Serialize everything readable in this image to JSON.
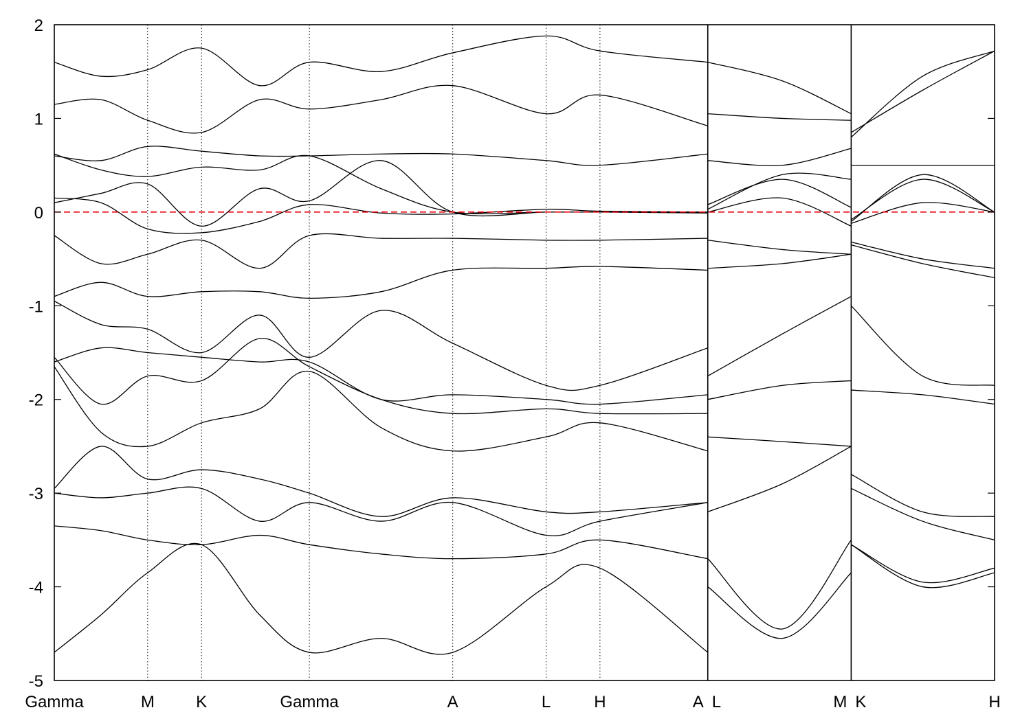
{
  "chart_data": {
    "type": "line",
    "title": "",
    "xlabel": "",
    "ylabel": "",
    "ylim": [
      -5,
      2
    ],
    "yticks": [
      "2",
      "1",
      "0",
      "-1",
      "-2",
      "-3",
      "-4",
      "-5"
    ],
    "x_points": [
      {
        "label": "Gamma",
        "x": 0
      },
      {
        "label": "M",
        "x": 1
      },
      {
        "label": "K",
        "x": 1.577
      },
      {
        "label": "Gamma",
        "x": 2.732
      },
      {
        "label": "A",
        "x": 4.268
      },
      {
        "label": "L",
        "x": 5.268
      },
      {
        "label": "H",
        "x": 5.845
      },
      {
        "label": "A",
        "x": 7.0
      },
      {
        "label": "L",
        "x": 7.0
      },
      {
        "label": "M",
        "x": 8.536
      },
      {
        "label": "K",
        "x": 8.536
      },
      {
        "label": "H",
        "x": 10.072
      }
    ],
    "xlim": [
      0,
      10.072
    ],
    "path_breaks": [
      7.0,
      8.536
    ],
    "fermi_level": {
      "y": 0,
      "color": "#e8000b",
      "style": "dashed"
    },
    "grid": "vertical dotted at high-symmetry points",
    "series": [
      {
        "x": [
          0,
          0.5,
          1,
          1.577,
          2.2,
          2.732,
          3.5,
          4.268,
          5.268,
          5.845,
          7.0,
          7.0,
          7.8,
          8.536,
          8.536,
          9.3,
          10.072
        ],
        "y": [
          0.15,
          0.1,
          -0.18,
          -0.22,
          -0.1,
          0.08,
          -0.01,
          -0.02,
          0.03,
          0.01,
          0.0,
          0.0,
          0.15,
          -0.15,
          -0.12,
          0.1,
          0.0
        ]
      },
      {
        "x": [
          0,
          0.5,
          1,
          1.577,
          2.2,
          2.732,
          3.5,
          4.268,
          5.268,
          5.845,
          7.0,
          7.0,
          7.8,
          8.536,
          8.536,
          9.3,
          10.072
        ],
        "y": [
          0.1,
          0.2,
          0.3,
          -0.15,
          0.25,
          0.12,
          0.55,
          0.0,
          0.0,
          0.0,
          -0.01,
          0.03,
          0.4,
          0.35,
          -0.1,
          0.4,
          0.0
        ]
      },
      {
        "x": [
          0,
          0.5,
          1,
          1.577,
          2.2,
          2.732,
          3.5,
          4.268,
          5.268,
          5.845,
          7.0,
          7.0,
          7.8,
          8.536,
          8.536,
          9.3,
          10.072
        ],
        "y": [
          0.6,
          0.55,
          0.7,
          0.65,
          0.6,
          0.6,
          0.62,
          0.62,
          0.55,
          0.5,
          0.62,
          0.55,
          0.5,
          0.68,
          0.5,
          0.5,
          0.5
        ]
      },
      {
        "x": [
          0,
          0.5,
          1,
          1.577,
          2.2,
          2.732,
          3.5,
          4.268,
          5.268,
          5.845,
          7.0,
          7.0,
          7.8,
          8.536,
          8.536,
          9.3,
          10.072
        ],
        "y": [
          0.62,
          0.45,
          0.38,
          0.48,
          0.45,
          0.6,
          0.25,
          0.0,
          0.0,
          0.0,
          0.0,
          0.08,
          0.35,
          0.05,
          -0.08,
          0.35,
          0.0
        ]
      },
      {
        "x": [
          0,
          0.5,
          1,
          1.577,
          2.2,
          2.732,
          3.5,
          4.268,
          5.268,
          5.845,
          7.0,
          7.0,
          7.8,
          8.536,
          8.536,
          9.3,
          10.072
        ],
        "y": [
          1.15,
          1.2,
          0.98,
          0.85,
          1.2,
          1.1,
          1.2,
          1.35,
          1.05,
          1.25,
          0.92,
          1.05,
          1.0,
          0.98,
          0.85,
          1.3,
          1.72
        ]
      },
      {
        "x": [
          0,
          0.5,
          1,
          1.577,
          2.2,
          2.732,
          3.5,
          4.268,
          5.268,
          5.845,
          7.0,
          7.0,
          7.8,
          8.536,
          8.536,
          9.3,
          10.072
        ],
        "y": [
          1.6,
          1.45,
          1.52,
          1.75,
          1.35,
          1.6,
          1.5,
          1.7,
          1.88,
          1.72,
          1.6,
          1.6,
          1.4,
          1.05,
          0.8,
          1.45,
          1.72
        ]
      },
      {
        "x": [
          0,
          0.5,
          1,
          1.577,
          2.2,
          2.732,
          3.5,
          4.268,
          5.268,
          5.845,
          7.0,
          7.0,
          7.8,
          8.536,
          8.536,
          9.3,
          10.072
        ],
        "y": [
          -0.25,
          -0.55,
          -0.45,
          -0.3,
          -0.6,
          -0.25,
          -0.28,
          -0.28,
          -0.3,
          -0.3,
          -0.28,
          -0.3,
          -0.4,
          -0.45,
          -0.32,
          -0.5,
          -0.6
        ]
      },
      {
        "x": [
          0,
          0.5,
          1,
          1.577,
          2.2,
          2.732,
          3.5,
          4.268,
          5.268,
          5.845,
          7.0,
          7.0,
          7.8,
          8.536,
          8.536,
          9.3,
          10.072
        ],
        "y": [
          -0.9,
          -0.75,
          -0.9,
          -0.85,
          -0.85,
          -0.92,
          -0.85,
          -0.62,
          -0.6,
          -0.58,
          -0.62,
          -0.6,
          -0.55,
          -0.45,
          -0.35,
          -0.55,
          -0.7
        ]
      },
      {
        "x": [
          0,
          0.5,
          1,
          1.577,
          2.2,
          2.732,
          3.5,
          4.268,
          5.268,
          5.845,
          7.0,
          7.0,
          7.8,
          8.536,
          8.536,
          9.3,
          10.072
        ],
        "y": [
          -0.95,
          -1.2,
          -1.25,
          -1.5,
          -1.1,
          -1.55,
          -1.05,
          -1.4,
          -1.85,
          -1.85,
          -1.45,
          -1.75,
          -1.3,
          -0.9,
          -1.0,
          -1.75,
          -1.85
        ]
      },
      {
        "x": [
          0,
          0.5,
          1,
          1.577,
          2.2,
          2.732,
          3.5,
          4.268,
          5.268,
          5.845,
          7.0,
          7.0,
          7.8,
          8.536,
          8.536,
          9.3,
          10.072
        ],
        "y": [
          -1.6,
          -1.45,
          -1.5,
          -1.55,
          -1.6,
          -1.6,
          -2.0,
          -1.95,
          -2.0,
          -2.05,
          -1.95,
          -2.0,
          -1.85,
          -1.8,
          -1.9,
          -1.95,
          -2.05
        ]
      },
      {
        "x": [
          0,
          0.5,
          1,
          1.577,
          2.2,
          2.732,
          3.5,
          4.268,
          5.268,
          5.845,
          7.0,
          7.0,
          7.8,
          8.536,
          8.536,
          9.3,
          10.072
        ],
        "y": [
          -1.65,
          -2.35,
          -2.5,
          -2.25,
          -2.1,
          -1.7,
          -2.3,
          -2.55,
          -2.4,
          -2.25,
          -2.55,
          -2.4,
          -2.45,
          -2.5,
          -2.8,
          -3.2,
          -3.25
        ]
      },
      {
        "x": [
          0,
          0.5,
          1,
          1.577,
          2.2,
          2.732,
          3.5,
          4.268,
          5.268,
          5.845,
          7.0,
          7.0,
          7.8,
          8.536,
          8.536,
          9.3,
          10.072
        ],
        "y": [
          -2.95,
          -2.5,
          -2.85,
          -2.75,
          -2.85,
          -3.0,
          -3.25,
          -3.05,
          -3.2,
          -3.2,
          -3.1,
          -3.2,
          -2.9,
          -2.5,
          -2.95,
          -3.3,
          -3.5
        ]
      },
      {
        "x": [
          0,
          0.5,
          1,
          1.577,
          2.2,
          2.732,
          3.5,
          4.268,
          5.268,
          5.845,
          7.0,
          7.0,
          7.8,
          8.536,
          8.536,
          9.3,
          10.072
        ],
        "y": [
          -3.35,
          -3.4,
          -3.5,
          -3.55,
          -3.45,
          -3.55,
          -3.65,
          -3.7,
          -3.65,
          -3.5,
          -3.7,
          -3.7,
          -4.45,
          -3.5,
          -3.55,
          -4.0,
          -3.85
        ]
      },
      {
        "x": [
          0,
          0.5,
          1,
          1.577,
          2.2,
          2.732,
          3.5,
          4.268,
          5.268,
          5.845,
          7.0,
          7.0,
          7.8,
          8.536,
          8.536,
          9.3,
          10.072
        ],
        "y": [
          -4.7,
          -4.3,
          -3.85,
          -3.55,
          -4.3,
          -4.7,
          -4.55,
          -4.7,
          -4.0,
          -3.8,
          -4.7,
          -4.0,
          -4.55,
          -3.85,
          -3.55,
          -3.95,
          -3.8
        ]
      },
      {
        "x": [
          0,
          0.5,
          1,
          1.577,
          2.2,
          2.732,
          3.5,
          4.268,
          5.268,
          5.845,
          7.0
        ],
        "y": [
          -1.55,
          -2.05,
          -1.75,
          -1.8,
          -1.35,
          -1.65,
          -2.0,
          -2.15,
          -2.1,
          -2.15,
          -2.15
        ]
      },
      {
        "x": [
          0,
          0.5,
          1,
          1.577,
          2.2,
          2.732,
          3.5,
          4.268,
          5.268,
          5.845,
          7.0
        ],
        "y": [
          -3.0,
          -3.05,
          -3.0,
          -2.95,
          -3.3,
          -3.1,
          -3.3,
          -3.1,
          -3.45,
          -3.3,
          -3.1
        ]
      }
    ]
  }
}
